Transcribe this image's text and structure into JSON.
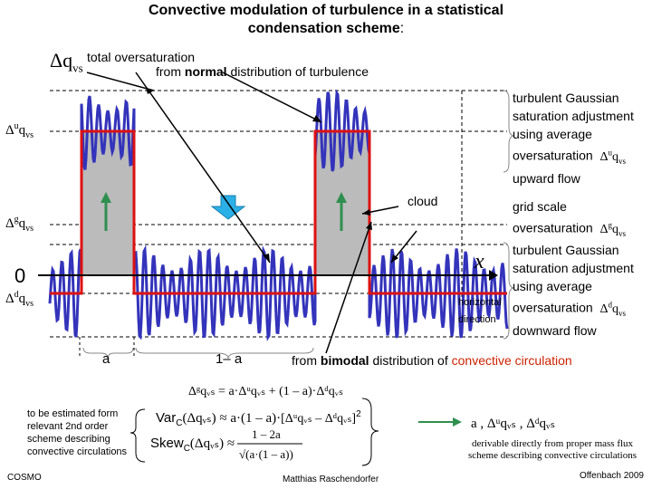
{
  "title_line1": "Convective modulation of turbulence in a statistical",
  "title_line2_main": "condensation scheme",
  "title_line2_colon": ":",
  "labels": {
    "dq_symbol": "Δq",
    "dq_sub": "vs",
    "total_oversat": "total oversaturation",
    "from_prefix": "from ",
    "normal": "normal",
    "normal_suffix": " distribution of turbulence",
    "y_up": "Δ",
    "y_up_sup": "u",
    "y_up_q": "q",
    "y_up_sub": "vs",
    "y_g": "Δ",
    "y_g_sup": "g",
    "y_g_q": "q",
    "y_g_sub": "vs",
    "y_zero": "0",
    "y_d": "Δ",
    "y_d_sup": "d",
    "y_d_q": "q",
    "y_d_sub": "vs",
    "x_axis": "x",
    "horizontal": "horizontal",
    "direction": "direction",
    "cloud": "cloud",
    "a_label": "a",
    "one_minus_a": "1– a"
  },
  "right_upper": {
    "line1": "turbulent  Gaussian",
    "line2": "saturation adjustment",
    "line3": "using average",
    "line4": "oversaturation",
    "sym": "Δ",
    "sym_sup": "u",
    "sym_q": "q",
    "sym_sub": "vs",
    "line5": "upward flow"
  },
  "right_mid": {
    "line1": "grid scale",
    "line2": "oversaturation",
    "sym": "Δ",
    "sym_sup": "g",
    "sym_q": "q",
    "sym_sub": "vs"
  },
  "right_lower": {
    "line1": "turbulent  Gaussian",
    "line2": "saturation adjustment",
    "line3": "using average",
    "line4": "oversaturation",
    "sym": "Δ",
    "sym_sup": "d",
    "sym_q": "q",
    "sym_sub": "vs",
    "line5": "downward flow"
  },
  "bimodal": {
    "prefix": "from ",
    "word": "bimodal",
    "mid": " distribution of ",
    "red": "convective circulation"
  },
  "formulas": {
    "f1": "Δᵍqᵥₛ = a·Δᵘqᵥₛ + (1 – a)·Δᵈqᵥₛ",
    "f2_left": "Var",
    "f2_sub": "C",
    "f2_arg": "(Δqᵥₛ) ≈ a·(1 – a)·",
    "f2_bracket": "[Δᵘqᵥₛ – Δᵈqᵥₛ]",
    "f2_exp": "2",
    "f3_left": "Skew",
    "f3_sub": "C",
    "f3_arg": "(Δqᵥₛ) ≈",
    "f3_num": "1 – 2a",
    "f3_den": "√(a·(1 – a))",
    "params": "a ,  Δᵘqᵥₛ ,  Δᵈqᵥₛ"
  },
  "left_note": [
    "to be estimated form",
    "relevant 2nd order",
    "scheme describing",
    "convective circulations"
  ],
  "right_note": [
    "derivable directly from proper mass flux",
    "scheme describing convective circulations"
  ],
  "footer": {
    "left": "COSMO",
    "center": "Matthias Raschendorfer",
    "right": "Offenbach 2009"
  },
  "colors": {
    "turbulence": "#3333bb",
    "envelope": "#dd1111",
    "fill": "#bbbbbb",
    "arrow_green": "#2f8f4f",
    "wide_arrow": "#2ab0e6",
    "accent_red": "#cc2200"
  }
}
